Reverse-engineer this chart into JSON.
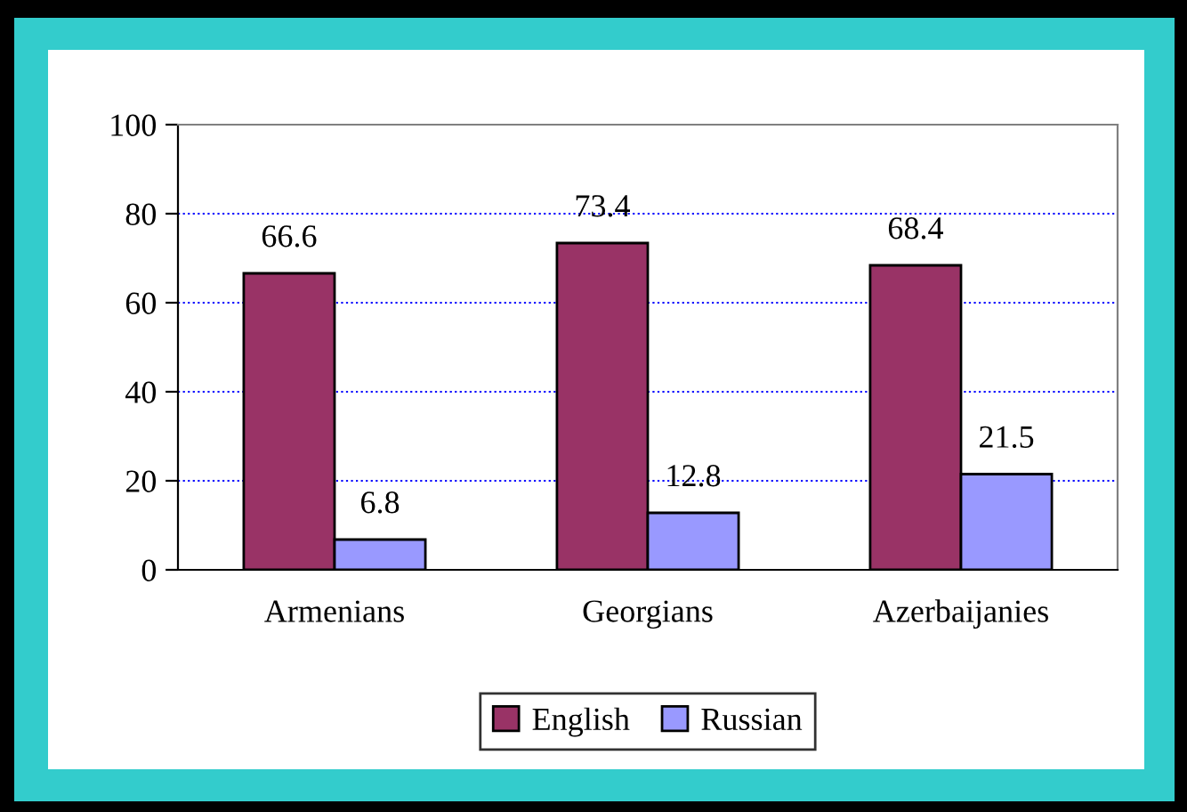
{
  "chart_data": {
    "type": "bar",
    "categories": [
      "Armenians",
      "Georgians",
      "Azerbaijanies"
    ],
    "series": [
      {
        "name": "English",
        "color": "#993366",
        "values": [
          66.6,
          73.4,
          68.4
        ]
      },
      {
        "name": "Russian",
        "color": "#9999ff",
        "values": [
          6.8,
          12.8,
          21.5
        ]
      }
    ],
    "ylim": [
      0,
      100
    ],
    "yticks": [
      0,
      20,
      40,
      60,
      80,
      100
    ],
    "grid": "y",
    "legend": "bottom",
    "data_labels": true
  }
}
